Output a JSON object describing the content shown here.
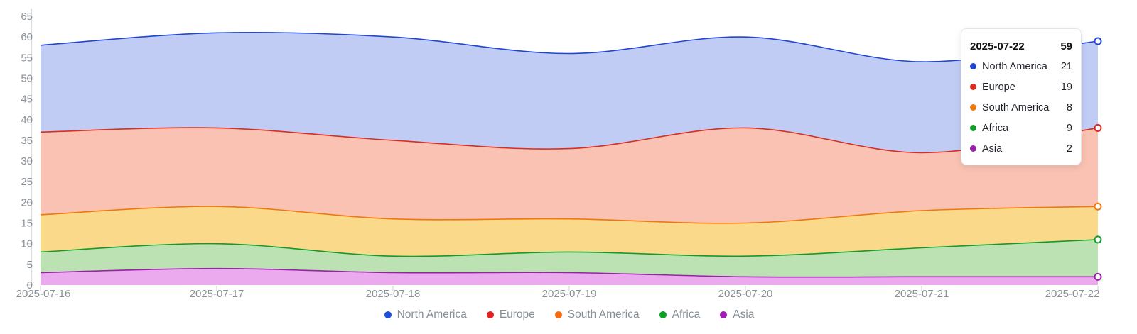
{
  "chart_data": {
    "type": "area",
    "stacked": true,
    "title": "",
    "x_labels": [
      "2025-07-16",
      "2025-07-17",
      "2025-07-18",
      "2025-07-19",
      "2025-07-20",
      "2025-07-21",
      "2025-07-22"
    ],
    "ylim": [
      0,
      65
    ],
    "yticks": [
      0,
      5,
      10,
      15,
      20,
      25,
      30,
      35,
      40,
      45,
      50,
      55,
      60,
      65
    ],
    "grid": false,
    "legend_position": "bottom",
    "stack_order_bottom_to_top": [
      "Asia",
      "Africa",
      "South America",
      "Europe",
      "North America"
    ],
    "end_markers": true,
    "series": [
      {
        "name": "North America",
        "color": "#2045d2",
        "fill": "#c0ccf3",
        "values": [
          21,
          23,
          25,
          23,
          22,
          22,
          21
        ]
      },
      {
        "name": "Europe",
        "color": "#d92d20",
        "fill": "#f9c2b2",
        "values": [
          20,
          19,
          19,
          17,
          23,
          14,
          19
        ]
      },
      {
        "name": "South America",
        "color": "#ef780e",
        "fill": "#fbd98a",
        "values": [
          9,
          9,
          9,
          8,
          8,
          9,
          8
        ]
      },
      {
        "name": "Africa",
        "color": "#129b28",
        "fill": "#bce2b3",
        "values": [
          5,
          6,
          4,
          5,
          5,
          7,
          9
        ]
      },
      {
        "name": "Asia",
        "color": "#9722a8",
        "fill": "#eaaaed",
        "values": [
          3,
          4,
          3,
          3,
          2,
          2,
          2
        ]
      }
    ],
    "totals": [
      58,
      61,
      60,
      56,
      60,
      54,
      59
    ]
  },
  "tooltip": {
    "date": "2025-07-22",
    "total": "59",
    "rows": [
      {
        "label": "North America",
        "value": "21",
        "color": "#2045d2"
      },
      {
        "label": "Europe",
        "value": "19",
        "color": "#d92d20"
      },
      {
        "label": "South America",
        "value": "8",
        "color": "#ef780e"
      },
      {
        "label": "Africa",
        "value": "9",
        "color": "#129b28"
      },
      {
        "label": "Asia",
        "value": "2",
        "color": "#9722a8"
      }
    ]
  },
  "legend": {
    "items": [
      {
        "label": "North America",
        "color": "#1d4fd8"
      },
      {
        "label": "Europe",
        "color": "#e02222"
      },
      {
        "label": "South America",
        "color": "#f76b0c"
      },
      {
        "label": "Africa",
        "color": "#0ba122"
      },
      {
        "label": "Asia",
        "color": "#a01fb5"
      }
    ]
  },
  "colors": {
    "axis_text": "#8a9097",
    "axis_line": "#d9dbde",
    "background": "#ffffff"
  }
}
